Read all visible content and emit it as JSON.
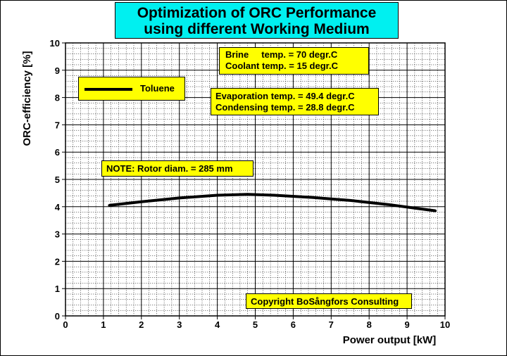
{
  "title": {
    "line1": "Optimization of ORC Performance",
    "line2": "using different Working Medium"
  },
  "notes": {
    "brine": "Brine     temp. = 70 degr.C",
    "coolant": "Coolant temp. = 15 degr.C",
    "evaporation": "Evaporation temp. = 49.4 degr.C",
    "condensing": "Condensing temp. = 28.8 degr.C",
    "rotor": "NOTE: Rotor diam. = 285 mm",
    "copyright": "Copyright  BoSångfors Consulting"
  },
  "colors": {
    "title_bg": "#00f0f0",
    "note_bg": "#ffff00",
    "line": "#000000",
    "grid": "#000000"
  },
  "chart_data": {
    "type": "line",
    "xlabel": "Power output [kW]",
    "ylabel": "ORC-efficiency [%]",
    "xlim": [
      0,
      10
    ],
    "ylim": [
      0,
      10
    ],
    "xticks": [
      "0",
      "1",
      "2",
      "3",
      "4",
      "5",
      "6",
      "7",
      "8",
      "9",
      "10"
    ],
    "yticks": [
      "0",
      "1",
      "2",
      "3",
      "4",
      "5",
      "6",
      "7",
      "8",
      "9",
      "10"
    ],
    "grid": true,
    "legend_position": "top-left",
    "series": [
      {
        "name": "Toluene",
        "x": [
          1.15,
          2.0,
          3.0,
          4.0,
          4.8,
          5.5,
          6.5,
          7.5,
          8.5,
          9.3,
          9.75
        ],
        "y": [
          4.05,
          4.18,
          4.32,
          4.42,
          4.45,
          4.42,
          4.34,
          4.23,
          4.08,
          3.93,
          3.85
        ]
      }
    ]
  }
}
